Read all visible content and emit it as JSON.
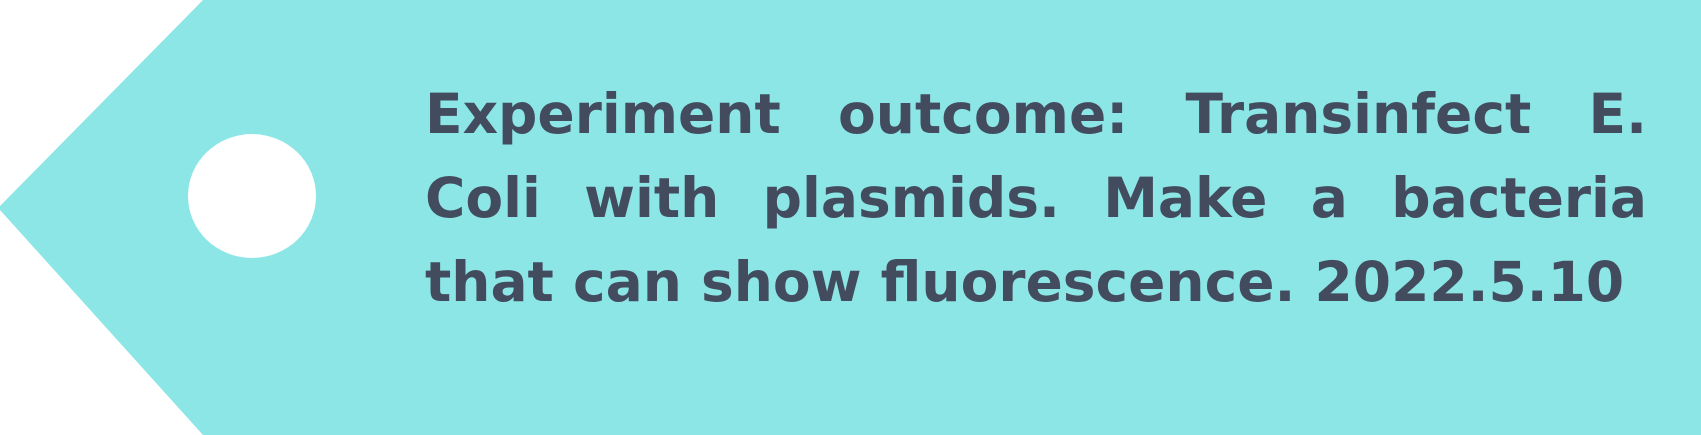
{
  "tag": {
    "text": "Experiment outcome: Transinfect E. Coli with plasmids. Make a bacteria that can show fluorescence. 2022.5.10",
    "fill_color": "#8ce6e6",
    "text_color": "#434c5e",
    "hole_color": "#ffffff"
  }
}
